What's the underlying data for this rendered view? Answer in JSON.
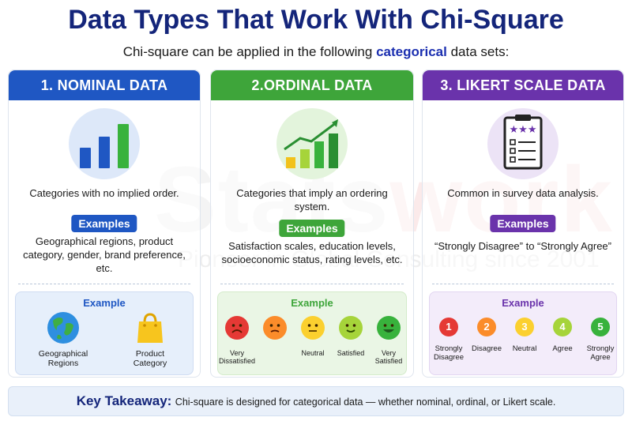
{
  "watermark": {
    "logo_a": "Stats",
    "logo_b": "work",
    "tagline": "Pioneer in Global Consulting since 2001"
  },
  "title": "Data Types That Work With Chi-Square",
  "subtitle": {
    "before": "Chi-square can be applied in the following",
    "bold": "categorical",
    "after": "data sets:"
  },
  "colors": {
    "nominal": "#1f57c3",
    "ordinal": "#3ea53a",
    "likert": "#6a33ab",
    "title": "#14257a"
  },
  "nominal": {
    "heading": "1. NOMINAL DATA",
    "icon": "bar-chart-icon",
    "description": "Categories with no implied order.",
    "examples_badge": "Examples",
    "examples_text": "Geographical regions, product category, gender, brand preference, etc.",
    "example_title": "Example",
    "items": [
      {
        "icon": "globe-icon",
        "label_1": "Geographical",
        "label_2": "Regions"
      },
      {
        "icon": "shopping-bag-icon",
        "label_1": "Product",
        "label_2": "Category"
      }
    ]
  },
  "ordinal": {
    "heading": "2.ORDINAL DATA",
    "icon": "growth-chart-icon",
    "description": "Categories that imply an ordering system.",
    "examples_badge": "Examples",
    "examples_text": "Satisfaction scales, education levels, socioeconomic status, rating levels, etc.",
    "example_title": "Example",
    "items": [
      {
        "label_1": "Very",
        "label_2": "Dissatisfied",
        "color": "#e53935"
      },
      {
        "label_1": "",
        "label_2": "",
        "color": "#fb8c2a"
      },
      {
        "label_1": "Neutral",
        "label_2": "",
        "color": "#fbd02f"
      },
      {
        "label_1": "Satisfied",
        "label_2": "",
        "color": "#a6d43a"
      },
      {
        "label_1": "Very",
        "label_2": "Satisfied",
        "color": "#38b23c"
      }
    ]
  },
  "likert": {
    "heading": "3. LIKERT SCALE DATA",
    "icon": "survey-clipboard-icon",
    "description": "Common in survey data analysis.",
    "examples_badge": "Examples",
    "examples_text": "“Strongly Disagree” to “Strongly Agree”",
    "example_title": "Example",
    "items": [
      {
        "num": "1",
        "label_1": "Strongly",
        "label_2": "Disagree",
        "color": "#e53935"
      },
      {
        "num": "2",
        "label_1": "Disagree",
        "label_2": "",
        "color": "#fb8c2a"
      },
      {
        "num": "3",
        "label_1": "Neutral",
        "label_2": "",
        "color": "#fbd02f"
      },
      {
        "num": "4",
        "label_1": "Agree",
        "label_2": "",
        "color": "#a6d43a"
      },
      {
        "num": "5",
        "label_1": "Strongly",
        "label_2": "Agree",
        "color": "#38b23c"
      }
    ]
  },
  "takeaway": {
    "label": "Key Takeaway:",
    "text": "Chi-square is designed for categorical data — whether nominal, ordinal, or Likert scale."
  }
}
